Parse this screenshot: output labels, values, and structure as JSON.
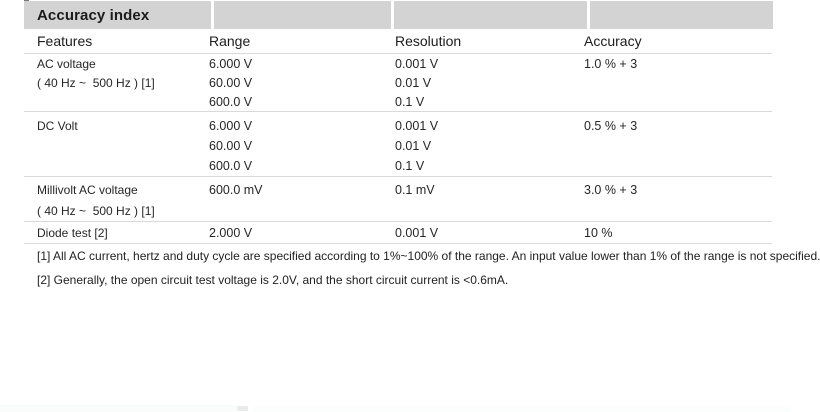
{
  "header": {
    "title": "Accuracy index"
  },
  "table": {
    "columns": [
      "Features",
      "Range",
      "Resolution",
      "Accuracy"
    ],
    "groups": [
      {
        "rows": [
          [
            "AC voltage",
            "6.000 V",
            "0.001 V",
            "1.0 % + 3"
          ],
          [
            "( 40 Hz ~  500 Hz ) [1]",
            "60.00 V",
            "0.01 V",
            ""
          ],
          [
            "",
            "600.0 V",
            "0.1 V",
            ""
          ]
        ]
      },
      {
        "rows": [
          [
            "DC Volt",
            "6.000 V",
            "0.001 V",
            "0.5 % + 3"
          ],
          [
            "",
            "60.00 V",
            "0.01 V",
            ""
          ],
          [
            "",
            "600.0 V",
            "0.1 V",
            ""
          ]
        ]
      },
      {
        "rows": [
          [
            "Millivolt AC voltage",
            "600.0 mV",
            "0.1 mV",
            "3.0 % + 3"
          ],
          [
            "( 40 Hz ~  500 Hz ) [1]",
            "",
            "",
            ""
          ]
        ]
      },
      {
        "rows": [
          [
            "Diode test [2]",
            "2.000 V",
            "0.001 V",
            "10 %"
          ]
        ]
      }
    ]
  },
  "footnotes": [
    "[1] All AC current, hertz and duty cycle are specified according to 1%~100% of the range. An input value lower than 1% of the range is not specified.",
    "[2] Generally, the open circuit test voltage is 2.0V, and the short circuit current is <0.6mA."
  ],
  "colors": {
    "header_bg": "#d3d3d3",
    "rule": "#d9d9d9",
    "text": "#262626"
  }
}
